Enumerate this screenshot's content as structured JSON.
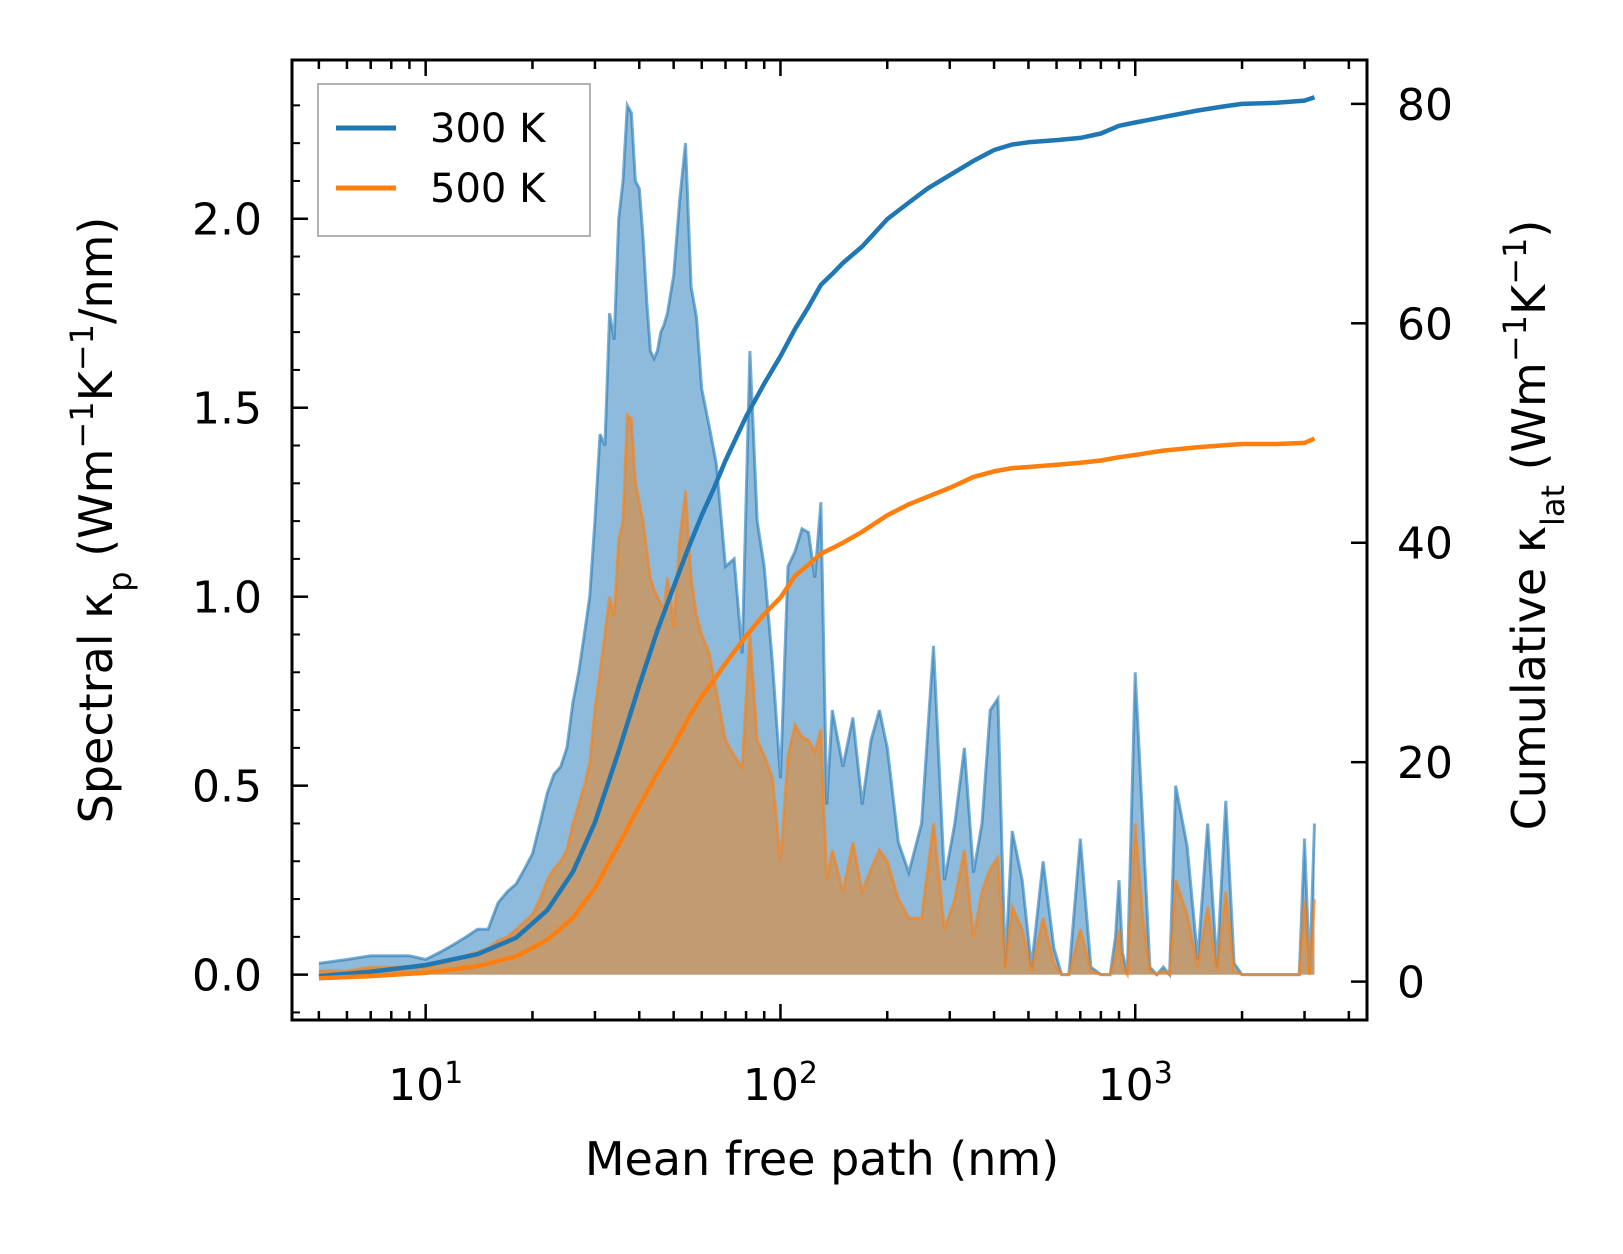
{
  "chart_data": {
    "type": "line",
    "xscale": "log",
    "xlabel": "Mean free path (nm)",
    "ylabel_left": "Spectral κp (Wm⁻¹K⁻¹/nm)",
    "ylabel_left_parts": {
      "main": "Spectral κ",
      "sub": "p",
      "tail1": " (Wm",
      "sup1": "−1",
      "tail2": "K",
      "sup2": "−1",
      "tail3": "/nm)"
    },
    "ylabel_right": "Cumulative κlat (Wm⁻¹K⁻¹)",
    "ylabel_right_parts": {
      "main": "Cumulative κ",
      "sub": "lat",
      "tail1": " (Wm",
      "sup1": "−1",
      "tail2": "K",
      "sup2": "−1",
      "tail3": ")"
    },
    "xlim": [
      4.2,
      4500
    ],
    "ylim_left": [
      -0.12,
      2.42
    ],
    "ylim_right": [
      -3.5,
      84
    ],
    "x_ticks": [
      {
        "base": "10",
        "exp": "1",
        "value": 10
      },
      {
        "base": "10",
        "exp": "2",
        "value": 100
      },
      {
        "base": "10",
        "exp": "3",
        "value": 1000
      }
    ],
    "y_left_ticks": [
      {
        "label": "0.0",
        "value": 0
      },
      {
        "label": "0.5",
        "value": 0.5
      },
      {
        "label": "1.0",
        "value": 1.0
      },
      {
        "label": "1.5",
        "value": 1.5
      },
      {
        "label": "2.0",
        "value": 2.0
      }
    ],
    "y_right_ticks": [
      {
        "label": "0",
        "value": 0
      },
      {
        "label": "20",
        "value": 20
      },
      {
        "label": "40",
        "value": 40
      },
      {
        "label": "60",
        "value": 60
      },
      {
        "label": "80",
        "value": 80
      }
    ],
    "legend": {
      "position": "top-left",
      "entries": [
        "300 K",
        "500 K"
      ]
    },
    "colors": {
      "s300": "#1f77b4",
      "s500": "#ff7f0e",
      "fill300": "#8ebbdc",
      "fill500": "#c49a6c"
    },
    "spectral": [
      {
        "name": "300 K",
        "x": [
          5,
          6,
          7,
          8,
          9,
          10,
          11,
          12,
          13,
          14,
          15,
          16,
          17,
          18,
          19,
          20,
          21,
          22,
          23,
          24,
          25,
          26,
          27,
          28,
          29,
          30,
          31,
          32,
          33,
          34,
          35,
          36,
          37,
          38,
          39,
          40,
          41,
          42,
          43,
          44,
          45,
          46,
          47,
          48,
          49,
          50,
          52,
          54,
          56,
          58,
          60,
          63,
          66,
          70,
          74,
          78,
          82,
          86,
          90,
          95,
          100,
          105,
          110,
          115,
          120,
          125,
          130,
          135,
          140,
          150,
          160,
          170,
          180,
          190,
          200,
          215,
          230,
          250,
          270,
          290,
          310,
          330,
          350,
          370,
          390,
          410,
          430,
          450,
          480,
          510,
          550,
          590,
          620,
          650,
          700,
          750,
          800,
          850,
          880,
          900,
          920,
          950,
          1000,
          1050,
          1100,
          1150,
          1200,
          1250,
          1300,
          1400,
          1500,
          1600,
          1700,
          1800,
          1900,
          2000,
          2200,
          2500,
          2800,
          2900,
          3000,
          3100,
          3200
        ],
        "y": [
          0.03,
          0.04,
          0.05,
          0.05,
          0.05,
          0.04,
          0.06,
          0.08,
          0.1,
          0.12,
          0.12,
          0.19,
          0.22,
          0.24,
          0.28,
          0.32,
          0.4,
          0.48,
          0.53,
          0.55,
          0.6,
          0.72,
          0.8,
          0.9,
          1.0,
          1.2,
          1.43,
          1.4,
          1.75,
          1.68,
          2.0,
          2.1,
          2.3,
          2.28,
          2.1,
          2.08,
          1.95,
          1.78,
          1.65,
          1.63,
          1.65,
          1.7,
          1.72,
          1.75,
          1.8,
          1.85,
          2.05,
          2.2,
          1.82,
          1.74,
          1.55,
          1.45,
          1.35,
          1.08,
          1.1,
          0.85,
          1.65,
          1.2,
          1.08,
          0.82,
          0.52,
          1.08,
          1.12,
          1.18,
          1.17,
          1.05,
          1.25,
          0.45,
          0.7,
          0.55,
          0.68,
          0.45,
          0.62,
          0.7,
          0.6,
          0.35,
          0.27,
          0.4,
          0.87,
          0.25,
          0.4,
          0.6,
          0.27,
          0.4,
          0.7,
          0.73,
          0.02,
          0.38,
          0.25,
          0.02,
          0.3,
          0.07,
          0.0,
          0.0,
          0.36,
          0.02,
          0.0,
          0.0,
          0.1,
          0.25,
          0.06,
          0.0,
          0.8,
          0.4,
          0.02,
          0.0,
          0.02,
          0.0,
          0.5,
          0.34,
          0.04,
          0.4,
          0.02,
          0.46,
          0.03,
          0.0,
          0.0,
          0.0,
          0.0,
          0.0,
          0.36,
          0.0,
          0.4
        ]
      },
      {
        "name": "500 K",
        "x": [
          5,
          6,
          7,
          8,
          9,
          10,
          11,
          12,
          13,
          14,
          15,
          16,
          17,
          18,
          19,
          20,
          21,
          22,
          23,
          24,
          25,
          26,
          27,
          28,
          29,
          30,
          31,
          32,
          33,
          34,
          35,
          36,
          37,
          38,
          39,
          40,
          41,
          42,
          43,
          44,
          45,
          46,
          47,
          48,
          49,
          50,
          52,
          54,
          56,
          58,
          60,
          63,
          66,
          70,
          74,
          78,
          82,
          86,
          90,
          95,
          100,
          105,
          110,
          115,
          120,
          125,
          130,
          135,
          140,
          150,
          160,
          170,
          180,
          190,
          200,
          215,
          230,
          250,
          270,
          290,
          310,
          330,
          350,
          370,
          390,
          410,
          430,
          450,
          480,
          510,
          550,
          590,
          620,
          650,
          700,
          750,
          800,
          850,
          880,
          900,
          920,
          950,
          1000,
          1050,
          1100,
          1150,
          1200,
          1250,
          1300,
          1400,
          1500,
          1600,
          1700,
          1800,
          1900,
          2000,
          2200,
          2500,
          2800,
          2900,
          3000,
          3100,
          3200
        ],
        "y": [
          0.01,
          0.01,
          0.02,
          0.02,
          0.02,
          0.02,
          0.03,
          0.04,
          0.05,
          0.06,
          0.07,
          0.09,
          0.1,
          0.12,
          0.14,
          0.16,
          0.2,
          0.25,
          0.28,
          0.3,
          0.33,
          0.4,
          0.45,
          0.5,
          0.56,
          0.7,
          0.8,
          0.9,
          1.0,
          0.95,
          1.15,
          1.2,
          1.48,
          1.47,
          1.3,
          1.25,
          1.2,
          1.12,
          1.05,
          1.02,
          1.0,
          0.98,
          0.97,
          1.05,
          1.0,
          0.92,
          1.15,
          1.28,
          1.05,
          0.95,
          0.9,
          0.85,
          0.75,
          0.62,
          0.58,
          0.55,
          0.9,
          0.62,
          0.58,
          0.52,
          0.3,
          0.58,
          0.66,
          0.63,
          0.62,
          0.59,
          0.65,
          0.25,
          0.33,
          0.22,
          0.35,
          0.22,
          0.28,
          0.33,
          0.3,
          0.2,
          0.15,
          0.15,
          0.4,
          0.12,
          0.2,
          0.33,
          0.1,
          0.22,
          0.28,
          0.31,
          0.02,
          0.18,
          0.12,
          0.01,
          0.15,
          0.03,
          0.0,
          0.0,
          0.12,
          0.01,
          0.0,
          0.0,
          0.05,
          0.12,
          0.02,
          0.0,
          0.4,
          0.15,
          0.01,
          0.0,
          0.01,
          0.0,
          0.25,
          0.16,
          0.02,
          0.18,
          0.01,
          0.22,
          0.01,
          0.0,
          0.0,
          0.0,
          0.0,
          0.0,
          0.2,
          0.0,
          0.2
        ]
      }
    ],
    "cumulative": [
      {
        "name": "300 K",
        "x": [
          5,
          7,
          10,
          14,
          18,
          22,
          26,
          30,
          35,
          40,
          45,
          50,
          55,
          60,
          65,
          70,
          80,
          90,
          100,
          110,
          120,
          130,
          140,
          150,
          170,
          200,
          230,
          260,
          300,
          350,
          400,
          450,
          500,
          600,
          700,
          800,
          900,
          1000,
          1200,
          1500,
          1800,
          2000,
          2500,
          3000,
          3200
        ],
        "y": [
          0.5,
          0.9,
          1.5,
          2.5,
          4.0,
          6.5,
          10.0,
          14.5,
          21.0,
          27.0,
          32.0,
          36.0,
          39.5,
          42.5,
          45.0,
          47.5,
          51.5,
          54.5,
          57.0,
          59.5,
          61.5,
          63.5,
          64.5,
          65.5,
          67.0,
          69.5,
          71.0,
          72.3,
          73.5,
          74.8,
          75.8,
          76.3,
          76.5,
          76.7,
          76.9,
          77.3,
          78.0,
          78.3,
          78.8,
          79.4,
          79.8,
          80.0,
          80.1,
          80.3,
          80.6
        ]
      },
      {
        "name": "500 K",
        "x": [
          5,
          7,
          10,
          14,
          18,
          22,
          26,
          30,
          35,
          40,
          45,
          50,
          55,
          60,
          65,
          70,
          80,
          90,
          100,
          110,
          120,
          130,
          140,
          150,
          170,
          200,
          230,
          260,
          300,
          350,
          400,
          450,
          500,
          600,
          700,
          800,
          900,
          1000,
          1200,
          1500,
          1800,
          2000,
          2500,
          3000,
          3200
        ],
        "y": [
          0.3,
          0.5,
          0.8,
          1.4,
          2.3,
          3.8,
          5.8,
          8.5,
          12.5,
          16.0,
          19.0,
          21.5,
          24.0,
          26.0,
          27.5,
          29.0,
          31.5,
          33.5,
          35.0,
          37.0,
          38.0,
          39.0,
          39.5,
          40.0,
          41.0,
          42.5,
          43.5,
          44.2,
          45.0,
          46.0,
          46.5,
          46.8,
          46.9,
          47.1,
          47.3,
          47.5,
          47.8,
          48.0,
          48.4,
          48.7,
          48.9,
          49.0,
          49.0,
          49.1,
          49.5
        ]
      }
    ]
  }
}
